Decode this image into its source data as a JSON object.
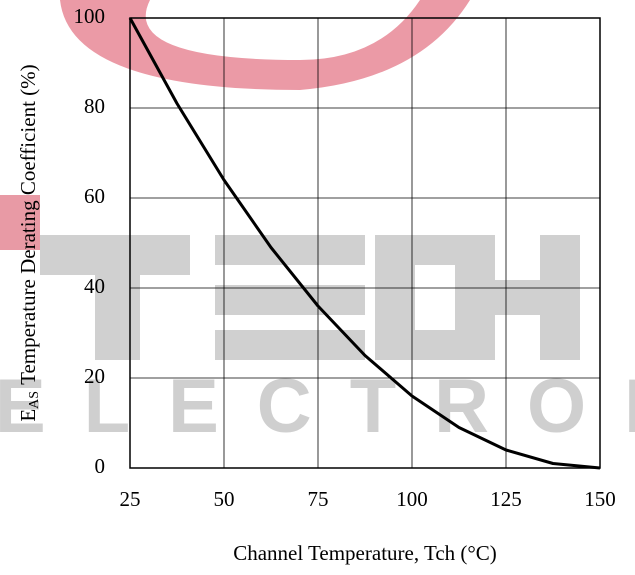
{
  "chart_data": {
    "type": "line",
    "x": [
      25,
      37.5,
      50,
      62.5,
      75,
      87.5,
      100,
      112.5,
      125,
      137.5,
      150
    ],
    "values": [
      100,
      81,
      64,
      49,
      36,
      25,
      16,
      9,
      4,
      1,
      0
    ],
    "color": "#000000",
    "xlim": [
      25,
      150
    ],
    "xticks": [
      25,
      50,
      75,
      100,
      125,
      150
    ],
    "ylim": [
      0,
      100
    ],
    "yticks": [
      0,
      20,
      40,
      60,
      80,
      100
    ],
    "grid": true,
    "x_label": "Channel Temperature, Tch  (°C)",
    "y_label": {
      "base": "E",
      "subscript": "AS",
      "text": "Temperature Derating Coefficient  (%)"
    },
    "watermark": "ELECTRONIC"
  }
}
